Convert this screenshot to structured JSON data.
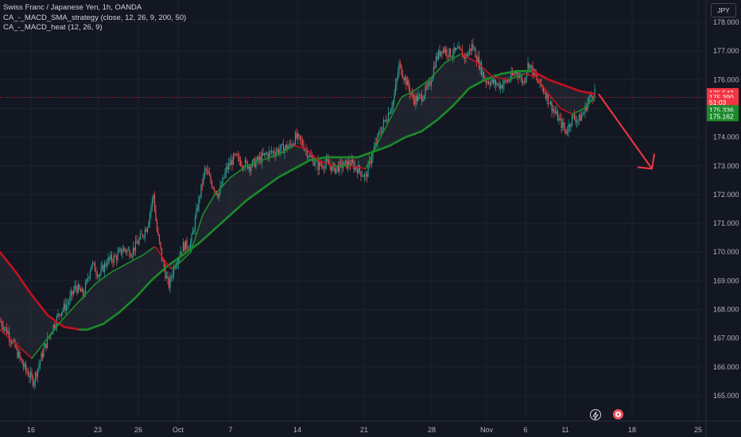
{
  "legend": {
    "title": "Swiss Franc / Japanese Yen, 1h, OANDA",
    "indicator1": "CA_-_MACD_SMA_strategy (close, 12, 26, 9, 200, 50)",
    "indicator2": "CA_-_MACD_heat (12, 26, 9)"
  },
  "currency_button": "JPY",
  "colors": {
    "background": "#131722",
    "up": "#26a69a",
    "down": "#ef5350",
    "ma_bear": "#c2121f",
    "ma_bull": "#1b8a2a",
    "arrow": "#f23645",
    "grid": "#1e222d"
  },
  "price_tags": [
    {
      "label": "175.542",
      "value": 175.542,
      "color": "#f23645"
    },
    {
      "label": "175.390",
      "value": 175.39,
      "color": "#f23645"
    },
    {
      "label": "51:03",
      "value": 175.2,
      "color": "#f23645"
    },
    {
      "label": "175.336",
      "value": 174.95,
      "color": "#1b8a2a"
    },
    {
      "label": "175.162",
      "value": 174.72,
      "color": "#1b8a2a"
    }
  ],
  "chart_data": {
    "type": "candlestick",
    "symbol": "CHFJPY",
    "timeframe": "1h",
    "y_ticks": [
      "165.000",
      "166.000",
      "167.000",
      "168.000",
      "169.000",
      "170.000",
      "171.000",
      "172.000",
      "173.000",
      "174.000",
      "175.000",
      "176.000",
      "177.000",
      "178.000"
    ],
    "ylim": [
      164.65,
      178.35
    ],
    "x_ticks": [
      "16",
      "23",
      "26",
      "Oct",
      "7",
      "14",
      "21",
      "28",
      "Nov",
      "6",
      "11",
      "18",
      "25"
    ],
    "price_path": [
      [
        0,
        167.6
      ],
      [
        10,
        167.2
      ],
      [
        20,
        166.6
      ],
      [
        30,
        166.0
      ],
      [
        42,
        165.5
      ],
      [
        55,
        166.6
      ],
      [
        65,
        167.3
      ],
      [
        75,
        167.9
      ],
      [
        85,
        168.2
      ],
      [
        95,
        168.8
      ],
      [
        105,
        168.5
      ],
      [
        115,
        169.6
      ],
      [
        125,
        169.2
      ],
      [
        135,
        169.7
      ],
      [
        145,
        169.8
      ],
      [
        155,
        170.1
      ],
      [
        165,
        170.0
      ],
      [
        175,
        170.4
      ],
      [
        185,
        170.9
      ],
      [
        193,
        172.0
      ],
      [
        197,
        170.8
      ],
      [
        205,
        169.6
      ],
      [
        212,
        168.8
      ],
      [
        220,
        169.6
      ],
      [
        230,
        170.2
      ],
      [
        240,
        170.3
      ],
      [
        250,
        171.8
      ],
      [
        258,
        172.9
      ],
      [
        266,
        172.4
      ],
      [
        275,
        172.0
      ],
      [
        285,
        172.9
      ],
      [
        295,
        173.3
      ],
      [
        305,
        173.1
      ],
      [
        315,
        173.0
      ],
      [
        325,
        173.2
      ],
      [
        335,
        173.4
      ],
      [
        345,
        173.5
      ],
      [
        355,
        173.6
      ],
      [
        365,
        173.7
      ],
      [
        372,
        174.0
      ],
      [
        380,
        173.8
      ],
      [
        390,
        173.3
      ],
      [
        400,
        173.0
      ],
      [
        410,
        173.1
      ],
      [
        420,
        172.9
      ],
      [
        430,
        173.0
      ],
      [
        440,
        173.1
      ],
      [
        450,
        172.9
      ],
      [
        460,
        172.6
      ],
      [
        468,
        173.4
      ],
      [
        478,
        174.2
      ],
      [
        488,
        174.8
      ],
      [
        495,
        175.3
      ],
      [
        502,
        176.5
      ],
      [
        510,
        176.0
      ],
      [
        520,
        175.3
      ],
      [
        530,
        175.4
      ],
      [
        540,
        175.8
      ],
      [
        548,
        176.7
      ],
      [
        556,
        177.1
      ],
      [
        566,
        176.9
      ],
      [
        576,
        177.0
      ],
      [
        586,
        176.8
      ],
      [
        594,
        177.2
      ],
      [
        602,
        176.6
      ],
      [
        610,
        176.0
      ],
      [
        620,
        175.9
      ],
      [
        630,
        175.8
      ],
      [
        640,
        176.0
      ],
      [
        650,
        176.3
      ],
      [
        658,
        175.9
      ],
      [
        665,
        176.6
      ],
      [
        675,
        176.0
      ],
      [
        685,
        175.6
      ],
      [
        695,
        175.0
      ],
      [
        705,
        174.5
      ],
      [
        712,
        174.2
      ],
      [
        720,
        174.7
      ],
      [
        728,
        174.6
      ],
      [
        735,
        174.9
      ],
      [
        740,
        175.3
      ],
      [
        748,
        175.6
      ]
    ],
    "ma200": [
      [
        0,
        170.0
      ],
      [
        20,
        169.3
      ],
      [
        40,
        168.5
      ],
      [
        60,
        167.8
      ],
      [
        80,
        167.4
      ],
      [
        100,
        167.3
      ],
      [
        110,
        167.3
      ],
      [
        130,
        167.5
      ],
      [
        150,
        167.9
      ],
      [
        170,
        168.4
      ],
      [
        190,
        169.0
      ],
      [
        210,
        169.5
      ],
      [
        230,
        169.9
      ],
      [
        250,
        170.3
      ],
      [
        270,
        170.8
      ],
      [
        290,
        171.3
      ],
      [
        310,
        171.8
      ],
      [
        330,
        172.2
      ],
      [
        350,
        172.6
      ],
      [
        370,
        172.9
      ],
      [
        390,
        173.2
      ],
      [
        410,
        173.3
      ],
      [
        430,
        173.3
      ],
      [
        450,
        173.3
      ],
      [
        470,
        173.5
      ],
      [
        490,
        173.7
      ],
      [
        510,
        174.0
      ],
      [
        530,
        174.2
      ],
      [
        550,
        174.6
      ],
      [
        570,
        175.1
      ],
      [
        590,
        175.7
      ],
      [
        610,
        176.0
      ],
      [
        630,
        176.2
      ],
      [
        650,
        176.3
      ],
      [
        670,
        176.3
      ],
      [
        690,
        176.0
      ],
      [
        710,
        175.8
      ],
      [
        730,
        175.6
      ],
      [
        748,
        175.5
      ]
    ],
    "ma50": [
      [
        0,
        167.3
      ],
      [
        20,
        166.8
      ],
      [
        40,
        166.3
      ],
      [
        60,
        167.0
      ],
      [
        80,
        167.7
      ],
      [
        100,
        168.3
      ],
      [
        120,
        168.9
      ],
      [
        140,
        169.3
      ],
      [
        160,
        169.6
      ],
      [
        180,
        169.9
      ],
      [
        195,
        170.2
      ],
      [
        205,
        169.8
      ],
      [
        215,
        169.4
      ],
      [
        225,
        169.6
      ],
      [
        240,
        170.0
      ],
      [
        255,
        171.3
      ],
      [
        270,
        172.0
      ],
      [
        290,
        172.6
      ],
      [
        310,
        173.0
      ],
      [
        330,
        173.2
      ],
      [
        350,
        173.4
      ],
      [
        370,
        173.7
      ],
      [
        385,
        173.6
      ],
      [
        400,
        173.2
      ],
      [
        420,
        173.0
      ],
      [
        440,
        173.0
      ],
      [
        460,
        172.9
      ],
      [
        475,
        173.8
      ],
      [
        490,
        174.6
      ],
      [
        505,
        175.4
      ],
      [
        520,
        175.6
      ],
      [
        540,
        176.0
      ],
      [
        560,
        176.6
      ],
      [
        580,
        176.9
      ],
      [
        600,
        176.6
      ],
      [
        620,
        176.1
      ],
      [
        640,
        176.0
      ],
      [
        660,
        176.2
      ],
      [
        675,
        176.1
      ],
      [
        690,
        175.5
      ],
      [
        705,
        175.0
      ],
      [
        720,
        174.8
      ],
      [
        735,
        175.0
      ],
      [
        748,
        175.4
      ]
    ],
    "forecast_arrow": {
      "from": [
        753,
        175.5
      ],
      "to": [
        820,
        172.9
      ]
    }
  },
  "bottom_icons": [
    "lightning-icon",
    "record-icon"
  ]
}
